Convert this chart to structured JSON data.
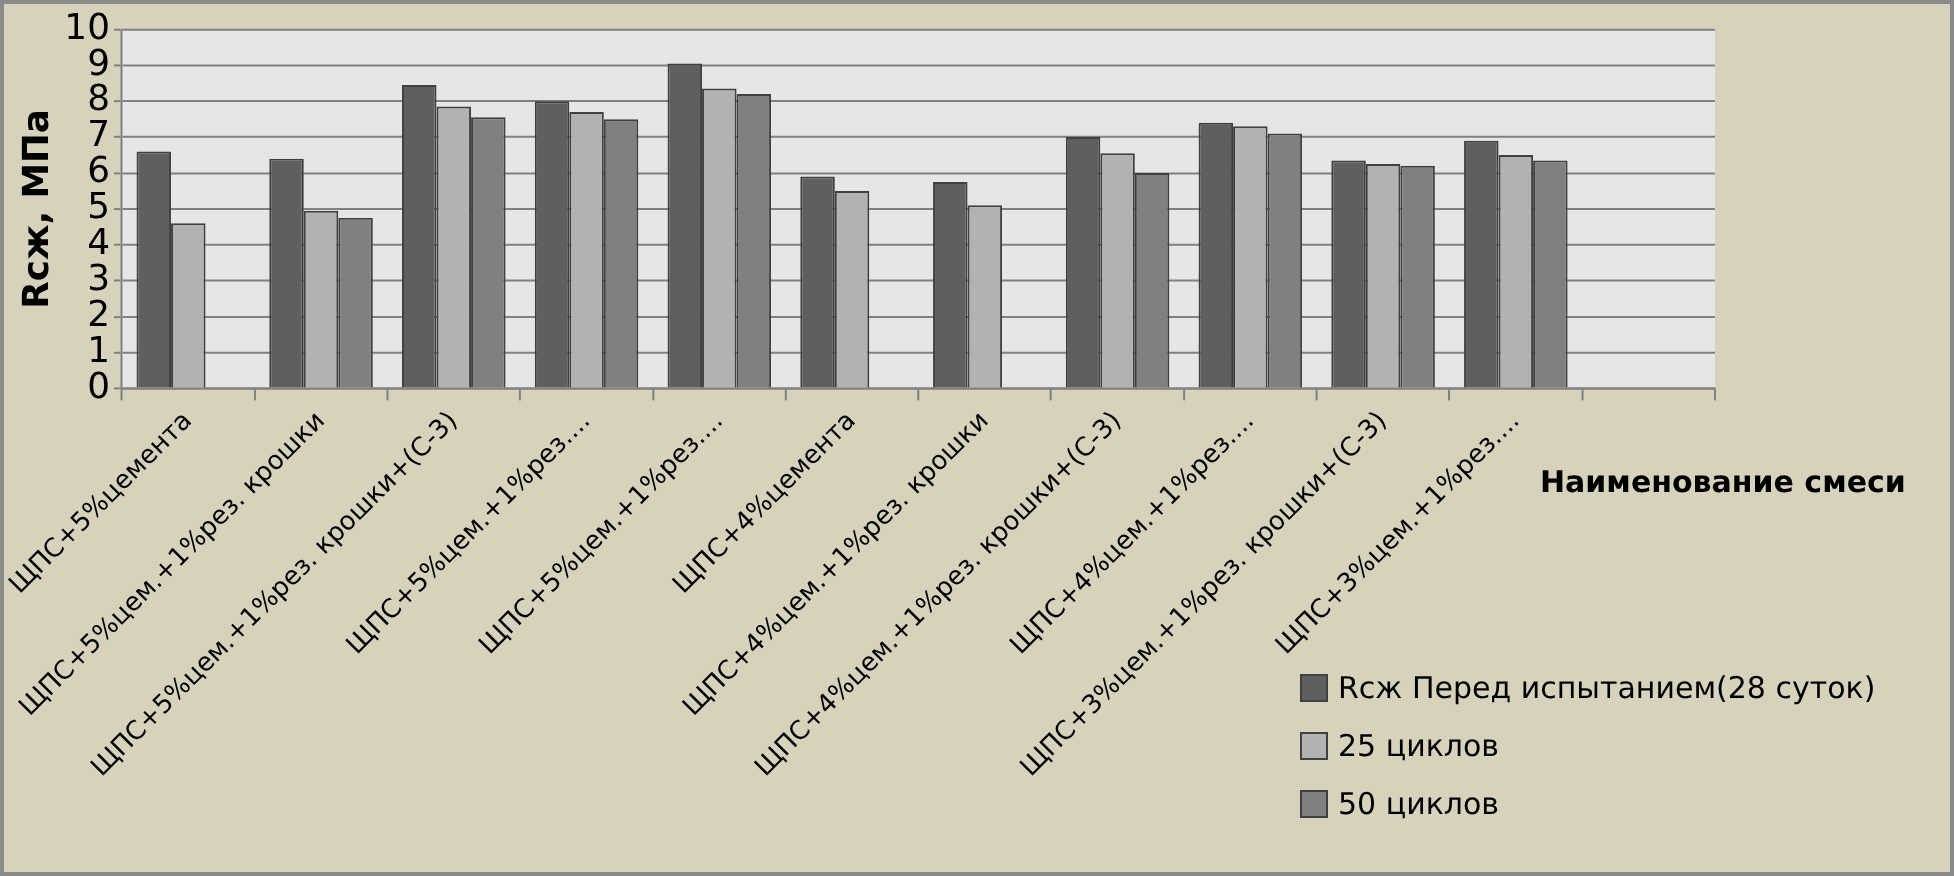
{
  "chart_data": {
    "type": "bar",
    "ylabel": "Rсж, МПа",
    "xlabel": "Наименование смеси",
    "categories": [
      "ЩПС+5%цемента",
      "ЩПС+5%цем.+1%рез. крошки",
      "ЩПС+5%цем.+1%рез. крошки+(С-3)",
      "ЩПС+5%цем.+1%рез....",
      "ЩПС+5%цем.+1%рез....",
      "ЩПС+4%цемента",
      "ЩПС+4%цем.+1%рез. крошки",
      "ЩПС+4%цем.+1%рез. крошки+(С-3)",
      "ЩПС+4%цем.+1%рез....",
      "ЩПС+3%цем.+1%рез. крошки+(С-3)",
      "ЩПС+3%цем.+1%рез....",
      null
    ],
    "series": [
      {
        "name": "Rсж Перед испытанием(28 суток)",
        "color": "#5f5f5f",
        "values": [
          6.6,
          6.4,
          8.45,
          8.0,
          9.05,
          5.9,
          5.75,
          7.0,
          7.4,
          6.35,
          6.9,
          null
        ]
      },
      {
        "name": "25 циклов",
        "color": "#b2b2b2",
        "values": [
          4.6,
          4.95,
          7.85,
          7.7,
          8.35,
          5.5,
          5.1,
          6.55,
          7.3,
          6.25,
          6.5,
          null
        ]
      },
      {
        "name": "50 циклов",
        "color": "#808080",
        "values": [
          null,
          4.75,
          7.55,
          7.5,
          8.2,
          null,
          null,
          6.0,
          7.1,
          6.2,
          6.35,
          null
        ]
      }
    ],
    "ylim": [
      0,
      10
    ],
    "yticks": [
      0,
      1,
      2,
      3,
      4,
      5,
      6,
      7,
      8,
      9,
      10
    ],
    "grid": "y",
    "legend": "bottom right"
  }
}
